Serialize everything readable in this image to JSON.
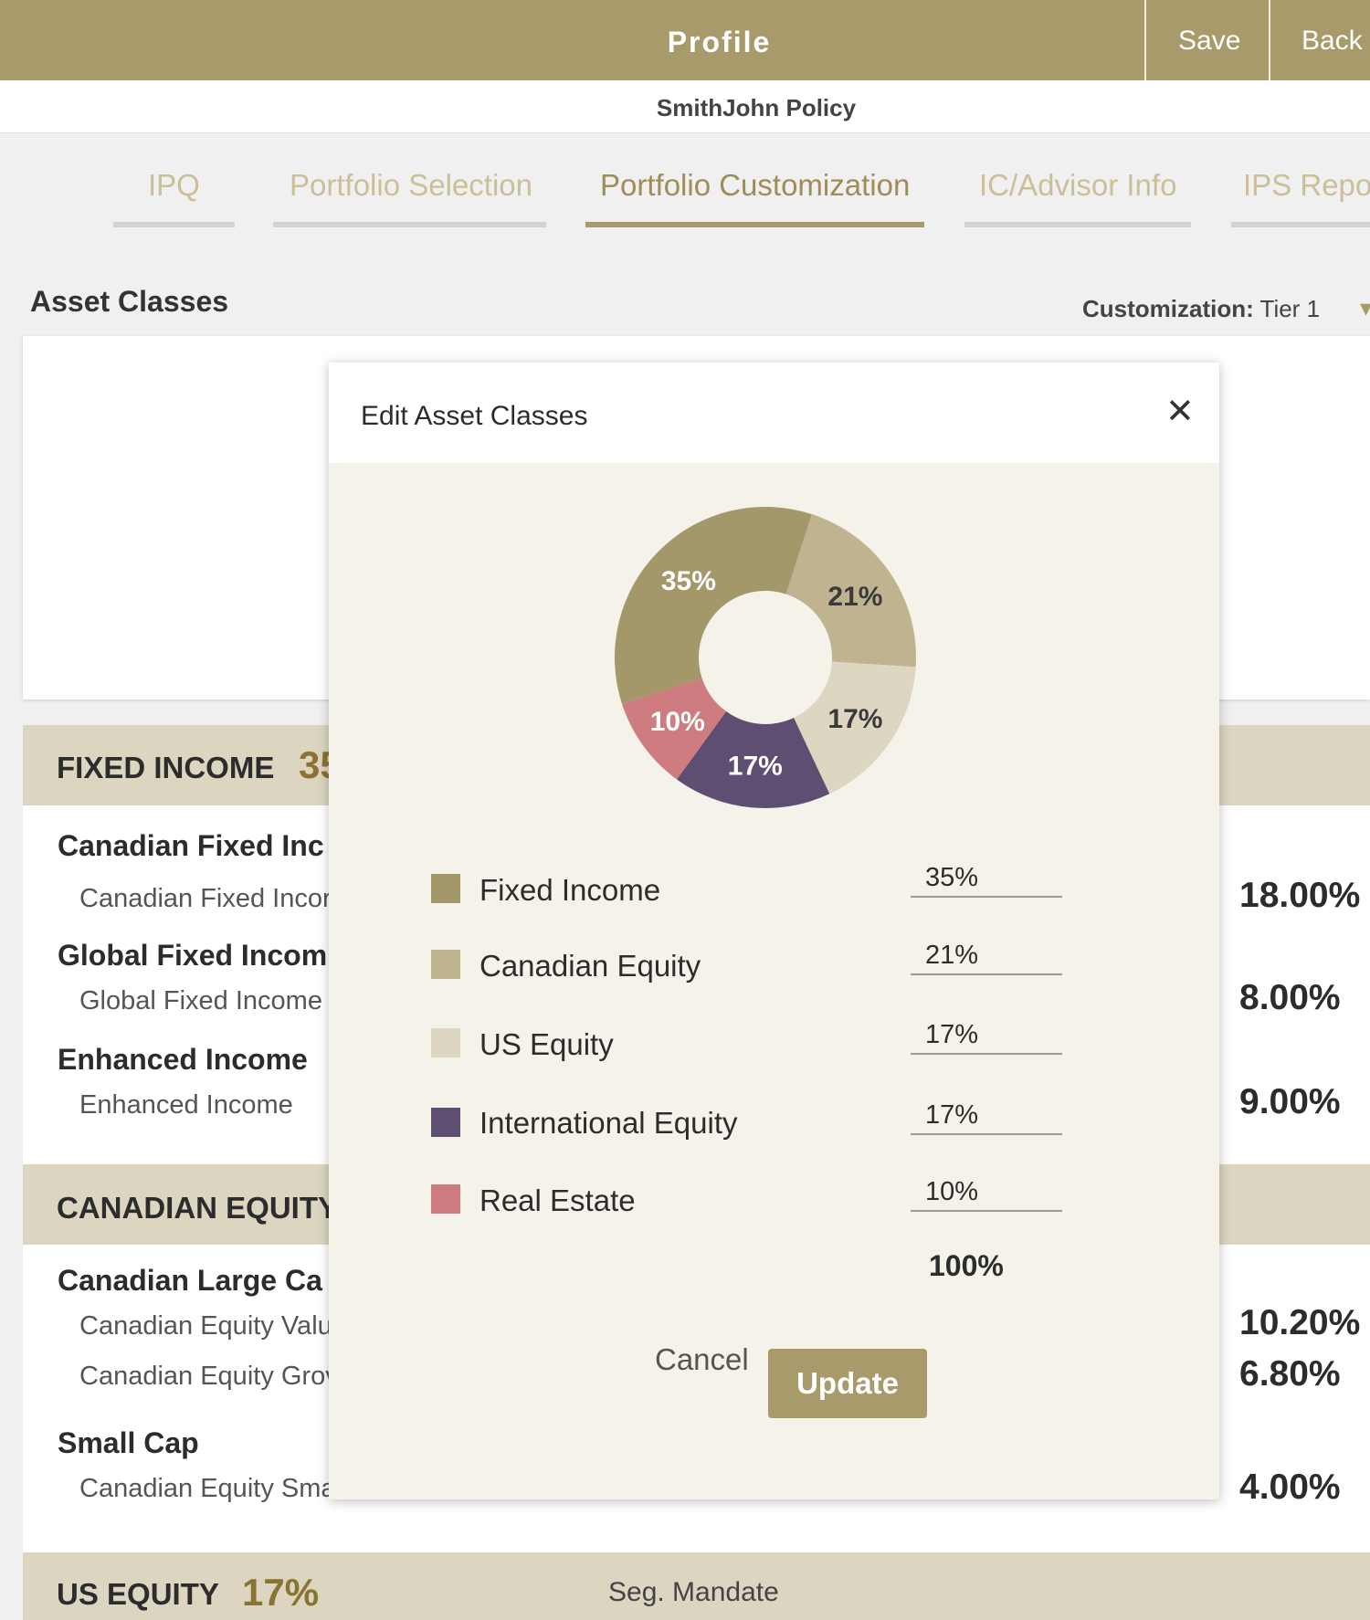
{
  "header": {
    "title": "Profile",
    "save_label": "Save",
    "back_label": "Back"
  },
  "policy_name": "SmithJohn Policy",
  "tabs": [
    {
      "label": "IPQ",
      "active": false
    },
    {
      "label": "Portfolio Selection",
      "active": false
    },
    {
      "label": "Portfolio Customization",
      "active": true
    },
    {
      "label": "IC/Advisor Info",
      "active": false
    },
    {
      "label": "IPS Repor",
      "active": false
    }
  ],
  "asset_classes_title": "Asset Classes",
  "customization": {
    "label": "Customization:",
    "value": "Tier 1"
  },
  "fixed_income": {
    "label": "FIXED INCOME",
    "pct": "35",
    "items": [
      {
        "category": "Canadian Fixed Inc",
        "fund": "Canadian Fixed Incor",
        "pct": "18.00%"
      },
      {
        "category": "Global Fixed Incom",
        "fund": "Global Fixed Income",
        "pct": "8.00%"
      },
      {
        "category": "Enhanced Income",
        "fund": "Enhanced Income",
        "pct": "9.00%"
      }
    ]
  },
  "canadian_equity": {
    "label": "CANADIAN EQUITY",
    "items": [
      {
        "category": "Canadian Large Ca",
        "funds": [
          "Canadian Equity Valu",
          "Canadian Equity Grov"
        ],
        "pcts": [
          "10.20%",
          "6.80%"
        ]
      },
      {
        "category": "Small Cap",
        "funds": [
          "Canadian Equity Sma"
        ],
        "pcts": [
          "4.00%"
        ]
      }
    ]
  },
  "us_equity": {
    "label": "US EQUITY",
    "pct": "17%",
    "seg_mandate": "Seg. Mandate"
  },
  "modal": {
    "title": "Edit Asset Classes",
    "close_icon": "close-icon",
    "legend": [
      {
        "name": "Fixed Income",
        "value": "35%",
        "color": "#a4976a"
      },
      {
        "name": "Canadian Equity",
        "value": "21%",
        "color": "#bfb48f"
      },
      {
        "name": "US Equity",
        "value": "17%",
        "color": "#ddd7c2"
      },
      {
        "name": "International Equity",
        "value": "17%",
        "color": "#5e4f72"
      },
      {
        "name": "Real Estate",
        "value": "10%",
        "color": "#cf7c80"
      }
    ],
    "total": "100%",
    "cancel_label": "Cancel",
    "update_label": "Update"
  },
  "chart_data": {
    "type": "pie",
    "labels": [
      "Fixed Income",
      "Canadian Equity",
      "US Equity",
      "International Equity",
      "Real Estate"
    ],
    "values": [
      35,
      21,
      17,
      17,
      10
    ],
    "slice_labels": [
      "35%",
      "21%",
      "17%",
      "17%",
      "10%"
    ],
    "colors": [
      "#a4976a",
      "#bfb48f",
      "#ddd7c2",
      "#5e4f72",
      "#cf7c80"
    ]
  }
}
